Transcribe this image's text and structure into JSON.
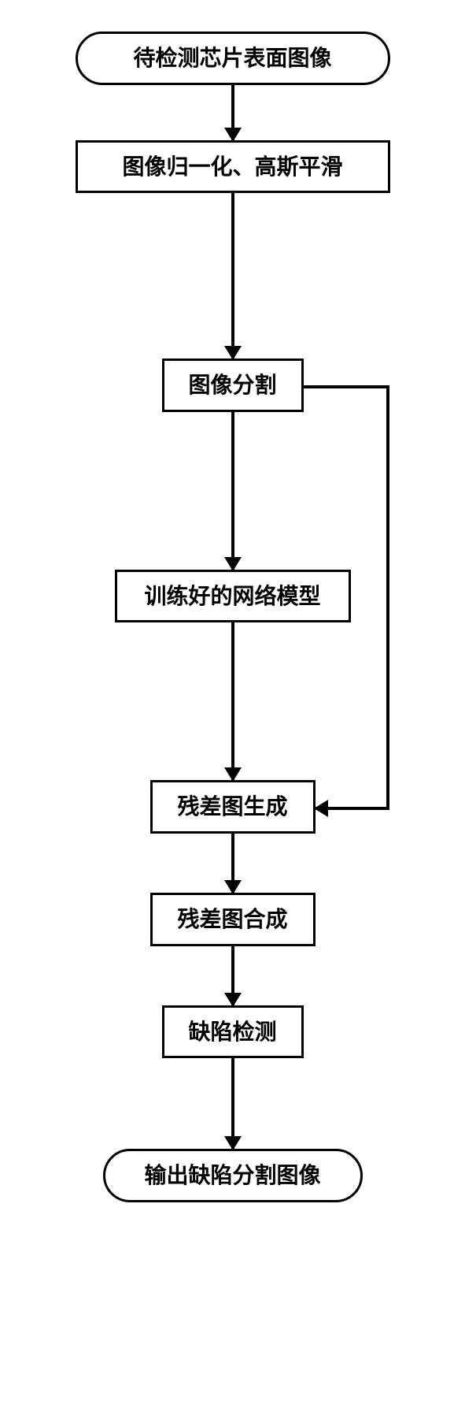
{
  "flowchart": {
    "type": "flowchart",
    "nodes": [
      {
        "id": "start",
        "label": "待检测芯片表面图像",
        "kind": "terminal"
      },
      {
        "id": "preprocess",
        "label": "图像归一化、高斯平滑",
        "kind": "process"
      },
      {
        "id": "segment",
        "label": "图像分割",
        "kind": "process"
      },
      {
        "id": "model",
        "label": "训练好的网络模型",
        "kind": "process"
      },
      {
        "id": "residual_gen",
        "label": "残差图生成",
        "kind": "process"
      },
      {
        "id": "residual_merge",
        "label": "残差图合成",
        "kind": "process"
      },
      {
        "id": "defect_detect",
        "label": "缺陷检测",
        "kind": "process"
      },
      {
        "id": "end",
        "label": "输出缺陷分割图像",
        "kind": "terminal"
      }
    ],
    "edges": [
      {
        "from": "start",
        "to": "preprocess",
        "length": 70
      },
      {
        "from": "preprocess",
        "to": "segment",
        "length": 210
      },
      {
        "from": "segment",
        "to": "model",
        "length": 200
      },
      {
        "from": "model",
        "to": "residual_gen",
        "length": 200
      },
      {
        "from": "residual_gen",
        "to": "residual_merge",
        "length": 75
      },
      {
        "from": "residual_merge",
        "to": "defect_detect",
        "length": 75
      },
      {
        "from": "defect_detect",
        "to": "end",
        "length": 115
      }
    ],
    "branch_edge": {
      "from": "segment",
      "to": "residual_gen",
      "side": "right"
    },
    "node_widths": {
      "start": 400,
      "preprocess": 400,
      "segment": 180,
      "model": 300,
      "residual_gen": 210,
      "residual_merge": 210,
      "defect_detect": 180,
      "end": 330
    },
    "styling": {
      "border_color": "#000000",
      "border_width": 3,
      "background": "#ffffff",
      "font_size": 28,
      "arrow_head_size": 18,
      "line_width": 4
    }
  }
}
